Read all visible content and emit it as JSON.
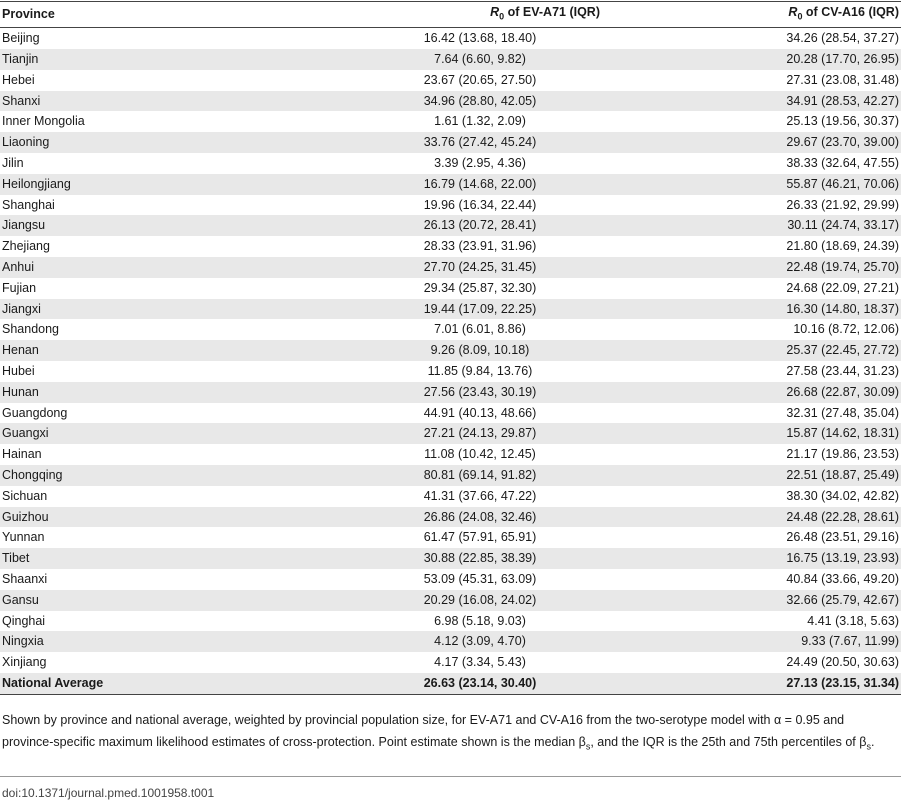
{
  "table": {
    "headers": {
      "province": "Province",
      "ev_a71": " of EV-A71 (IQR)",
      "cv_a16": " of CV-A16 (IQR)",
      "r_symbol": "R",
      "r_sub": "0"
    },
    "rows": [
      {
        "province": "Beijing",
        "ev_a71": "16.42 (13.68, 18.40)",
        "cv_a16": "34.26 (28.54, 37.27)"
      },
      {
        "province": "Tianjin",
        "ev_a71": "7.64 (6.60, 9.82)",
        "cv_a16": "20.28 (17.70, 26.95)"
      },
      {
        "province": "Hebei",
        "ev_a71": "23.67 (20.65, 27.50)",
        "cv_a16": "27.31 (23.08, 31.48)"
      },
      {
        "province": "Shanxi",
        "ev_a71": "34.96 (28.80, 42.05)",
        "cv_a16": "34.91 (28.53, 42.27)"
      },
      {
        "province": "Inner Mongolia",
        "ev_a71": "1.61 (1.32, 2.09)",
        "cv_a16": "25.13 (19.56, 30.37)"
      },
      {
        "province": "Liaoning",
        "ev_a71": "33.76 (27.42, 45.24)",
        "cv_a16": "29.67 (23.70, 39.00)"
      },
      {
        "province": "Jilin",
        "ev_a71": "3.39 (2.95, 4.36)",
        "cv_a16": "38.33 (32.64, 47.55)"
      },
      {
        "province": "Heilongjiang",
        "ev_a71": "16.79 (14.68, 22.00)",
        "cv_a16": "55.87 (46.21, 70.06)"
      },
      {
        "province": "Shanghai",
        "ev_a71": "19.96 (16.34, 22.44)",
        "cv_a16": "26.33 (21.92, 29.99)"
      },
      {
        "province": "Jiangsu",
        "ev_a71": "26.13 (20.72, 28.41)",
        "cv_a16": "30.11 (24.74, 33.17)"
      },
      {
        "province": "Zhejiang",
        "ev_a71": "28.33 (23.91, 31.96)",
        "cv_a16": "21.80 (18.69, 24.39)"
      },
      {
        "province": "Anhui",
        "ev_a71": "27.70 (24.25, 31.45)",
        "cv_a16": "22.48 (19.74, 25.70)"
      },
      {
        "province": "Fujian",
        "ev_a71": "29.34 (25.87, 32.30)",
        "cv_a16": "24.68 (22.09, 27.21)"
      },
      {
        "province": "Jiangxi",
        "ev_a71": "19.44 (17.09, 22.25)",
        "cv_a16": "16.30 (14.80, 18.37)"
      },
      {
        "province": "Shandong",
        "ev_a71": "7.01 (6.01, 8.86)",
        "cv_a16": "10.16 (8.72, 12.06)"
      },
      {
        "province": "Henan",
        "ev_a71": "9.26 (8.09, 10.18)",
        "cv_a16": "25.37 (22.45, 27.72)"
      },
      {
        "province": "Hubei",
        "ev_a71": "11.85 (9.84, 13.76)",
        "cv_a16": "27.58 (23.44, 31.23)"
      },
      {
        "province": "Hunan",
        "ev_a71": "27.56 (23.43, 30.19)",
        "cv_a16": "26.68 (22.87, 30.09)"
      },
      {
        "province": "Guangdong",
        "ev_a71": "44.91 (40.13, 48.66)",
        "cv_a16": "32.31 (27.48, 35.04)"
      },
      {
        "province": "Guangxi",
        "ev_a71": "27.21 (24.13, 29.87)",
        "cv_a16": "15.87 (14.62, 18.31)"
      },
      {
        "province": "Hainan",
        "ev_a71": "11.08 (10.42, 12.45)",
        "cv_a16": "21.17 (19.86, 23.53)"
      },
      {
        "province": "Chongqing",
        "ev_a71": "80.81 (69.14, 91.82)",
        "cv_a16": "22.51 (18.87, 25.49)"
      },
      {
        "province": "Sichuan",
        "ev_a71": "41.31 (37.66, 47.22)",
        "cv_a16": "38.30 (34.02, 42.82)"
      },
      {
        "province": "Guizhou",
        "ev_a71": "26.86 (24.08, 32.46)",
        "cv_a16": "24.48 (22.28, 28.61)"
      },
      {
        "province": "Yunnan",
        "ev_a71": "61.47 (57.91, 65.91)",
        "cv_a16": "26.48 (23.51, 29.16)"
      },
      {
        "province": "Tibet",
        "ev_a71": "30.88 (22.85, 38.39)",
        "cv_a16": "16.75 (13.19, 23.93)"
      },
      {
        "province": "Shaanxi",
        "ev_a71": "53.09 (45.31, 63.09)",
        "cv_a16": "40.84 (33.66, 49.20)"
      },
      {
        "province": "Gansu",
        "ev_a71": "20.29 (16.08, 24.02)",
        "cv_a16": "32.66 (25.79, 42.67)"
      },
      {
        "province": "Qinghai",
        "ev_a71": "6.98 (5.18, 9.03)",
        "cv_a16": "4.41 (3.18, 5.63)"
      },
      {
        "province": "Ningxia",
        "ev_a71": "4.12 (3.09, 4.70)",
        "cv_a16": "9.33 (7.67, 11.99)"
      },
      {
        "province": "Xinjiang",
        "ev_a71": "4.17 (3.34, 5.43)",
        "cv_a16": "24.49 (20.50, 30.63)"
      }
    ],
    "average": {
      "province": "National Average",
      "ev_a71": "26.63 (23.14, 30.40)",
      "cv_a16": "27.13 (23.15, 31.34)"
    }
  },
  "footnote": {
    "part1": "Shown by province and national average, weighted by provincial population size, for EV-A71 and CV-A16 from the two-serotype model with α = 0.95 and province-specific maximum likelihood estimates of cross-protection. Point estimate shown is the median β",
    "sub1": "s",
    "part2": ", and the IQR is the 25th and 75th percentiles of β",
    "sub2": "s",
    "part3": "."
  },
  "doi": "doi:10.1371/journal.pmed.1001958.t001"
}
